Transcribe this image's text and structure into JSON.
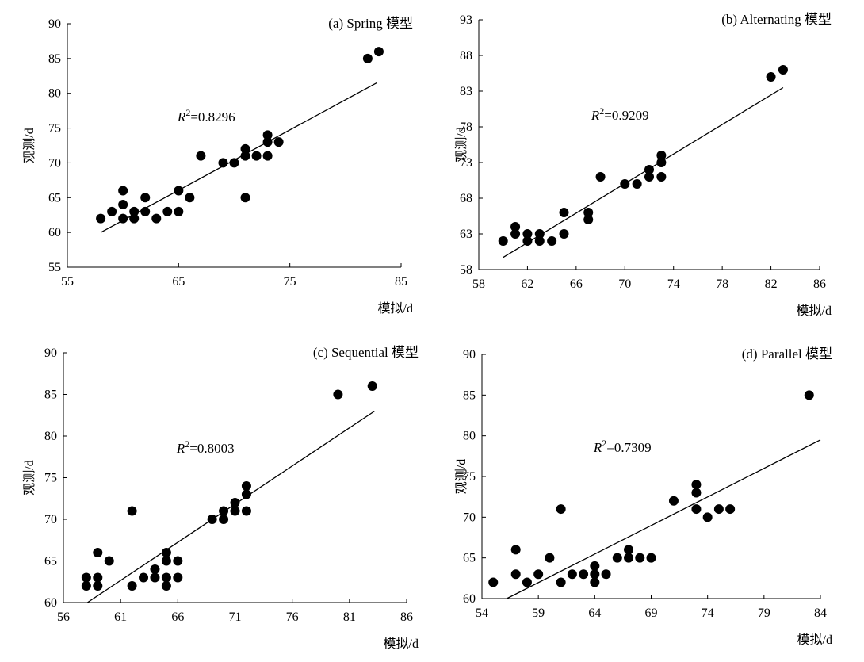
{
  "chart_data": [
    {
      "type": "scatter",
      "title": "(a) Spring 模型",
      "xlabel": "模拟/d",
      "ylabel": "观测/d",
      "xlim": [
        55,
        85
      ],
      "ylim": [
        55,
        90
      ],
      "xticks": [
        55,
        65,
        75,
        85
      ],
      "yticks": [
        55,
        60,
        65,
        70,
        75,
        80,
        85,
        90
      ],
      "grid": false,
      "r2_label": "=0.8296",
      "points": [
        [
          58,
          62
        ],
        [
          59,
          63
        ],
        [
          60,
          62
        ],
        [
          60,
          64
        ],
        [
          60,
          66
        ],
        [
          61,
          62
        ],
        [
          61,
          63
        ],
        [
          62,
          63
        ],
        [
          62,
          65
        ],
        [
          63,
          62
        ],
        [
          64,
          63
        ],
        [
          65,
          63
        ],
        [
          65,
          66
        ],
        [
          66,
          65
        ],
        [
          67,
          71
        ],
        [
          69,
          70
        ],
        [
          70,
          70
        ],
        [
          71,
          65
        ],
        [
          71,
          71
        ],
        [
          71,
          72
        ],
        [
          72,
          71
        ],
        [
          73,
          71
        ],
        [
          73,
          73
        ],
        [
          73,
          74
        ],
        [
          74,
          73
        ],
        [
          82,
          85
        ],
        [
          83,
          86
        ]
      ],
      "fit_line": [
        [
          58,
          60
        ],
        [
          82.8,
          81.5
        ]
      ]
    },
    {
      "type": "scatter",
      "title": "(b) Alternating 模型",
      "xlabel": "模拟/d",
      "ylabel": "观测/d",
      "xlim": [
        58,
        86
      ],
      "ylim": [
        58,
        93
      ],
      "xticks": [
        58,
        62,
        66,
        70,
        74,
        78,
        82,
        86
      ],
      "yticks": [
        58,
        63,
        68,
        73,
        78,
        83,
        88,
        93
      ],
      "grid": false,
      "r2_label": "=0.9209",
      "points": [
        [
          60,
          62
        ],
        [
          61,
          63
        ],
        [
          61,
          64
        ],
        [
          62,
          62
        ],
        [
          62,
          63
        ],
        [
          63,
          62
        ],
        [
          63,
          63
        ],
        [
          64,
          62
        ],
        [
          65,
          63
        ],
        [
          65,
          66
        ],
        [
          67,
          65
        ],
        [
          67,
          66
        ],
        [
          68,
          71
        ],
        [
          70,
          70
        ],
        [
          71,
          70
        ],
        [
          72,
          71
        ],
        [
          72,
          72
        ],
        [
          73,
          71
        ],
        [
          73,
          73
        ],
        [
          73,
          74
        ],
        [
          82,
          85
        ],
        [
          83,
          86
        ]
      ],
      "fit_line": [
        [
          60,
          59.7
        ],
        [
          83,
          83.5
        ]
      ]
    },
    {
      "type": "scatter",
      "title": "(c) Sequential 模型",
      "xlabel": "模拟/d",
      "ylabel": "观测/d",
      "xlim": [
        56,
        86
      ],
      "ylim": [
        60,
        90
      ],
      "xticks": [
        56,
        61,
        66,
        71,
        76,
        81,
        86
      ],
      "yticks": [
        60,
        65,
        70,
        75,
        80,
        85,
        90
      ],
      "grid": false,
      "r2_label": "=0.8003",
      "points": [
        [
          58,
          62
        ],
        [
          58,
          63
        ],
        [
          59,
          62
        ],
        [
          59,
          63
        ],
        [
          59,
          66
        ],
        [
          60,
          65
        ],
        [
          62,
          62
        ],
        [
          62,
          71
        ],
        [
          63,
          63
        ],
        [
          64,
          63
        ],
        [
          64,
          64
        ],
        [
          65,
          62
        ],
        [
          65,
          63
        ],
        [
          65,
          65
        ],
        [
          65,
          66
        ],
        [
          66,
          63
        ],
        [
          66,
          65
        ],
        [
          69,
          70
        ],
        [
          70,
          70
        ],
        [
          70,
          71
        ],
        [
          71,
          71
        ],
        [
          71,
          72
        ],
        [
          72,
          71
        ],
        [
          72,
          73
        ],
        [
          72,
          74
        ],
        [
          80,
          85
        ],
        [
          83,
          86
        ]
      ],
      "fit_line": [
        [
          58.1,
          60
        ],
        [
          83.2,
          83
        ]
      ]
    },
    {
      "type": "scatter",
      "title": "(d) Parallel 模型",
      "xlabel": "模拟/d",
      "ylabel": "观测/d",
      "xlim": [
        54,
        84
      ],
      "ylim": [
        60,
        90
      ],
      "xticks": [
        54,
        59,
        64,
        69,
        74,
        79,
        84
      ],
      "yticks": [
        60,
        65,
        70,
        75,
        80,
        85,
        90
      ],
      "grid": false,
      "r2_label": "=0.7309",
      "points": [
        [
          55,
          62
        ],
        [
          57,
          63
        ],
        [
          57,
          66
        ],
        [
          58,
          62
        ],
        [
          59,
          63
        ],
        [
          60,
          65
        ],
        [
          61,
          62
        ],
        [
          61,
          71
        ],
        [
          62,
          63
        ],
        [
          63,
          63
        ],
        [
          64,
          62
        ],
        [
          64,
          63
        ],
        [
          64,
          64
        ],
        [
          65,
          63
        ],
        [
          66,
          65
        ],
        [
          67,
          65
        ],
        [
          67,
          66
        ],
        [
          68,
          65
        ],
        [
          69,
          65
        ],
        [
          71,
          72
        ],
        [
          73,
          71
        ],
        [
          73,
          73
        ],
        [
          73,
          74
        ],
        [
          74,
          70
        ],
        [
          75,
          71
        ],
        [
          76,
          71
        ],
        [
          83,
          85
        ]
      ],
      "fit_line": [
        [
          56.2,
          60
        ],
        [
          84,
          79.5
        ]
      ]
    }
  ]
}
